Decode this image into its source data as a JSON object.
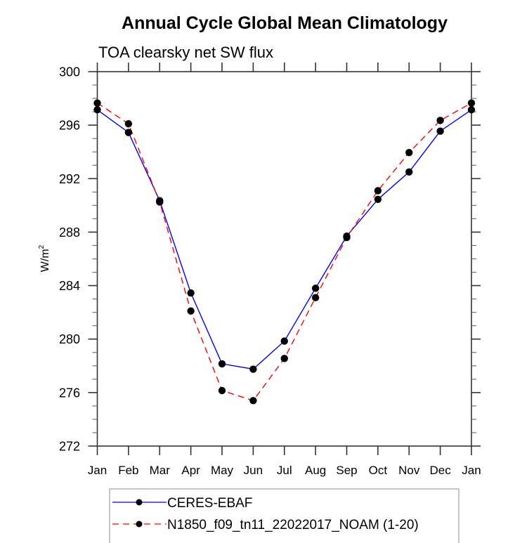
{
  "chart_data": {
    "type": "line",
    "title": "Annual Cycle Global Mean Climatology",
    "subtitle": "TOA clearsky net SW flux",
    "xlabel": "",
    "ylabel": "W/m",
    "ylabel_superscript": "2",
    "categories": [
      "Jan",
      "Feb",
      "Mar",
      "Apr",
      "May",
      "Jun",
      "Jul",
      "Aug",
      "Sep",
      "Oct",
      "Nov",
      "Dec",
      "Jan"
    ],
    "ylim": [
      272,
      300
    ],
    "yticks_major": [
      272,
      276,
      280,
      284,
      288,
      292,
      296,
      300
    ],
    "ytick_labels": [
      "272",
      "276",
      "280",
      "284",
      "288",
      "292",
      "296",
      "300"
    ],
    "yticks_minor_step": 1,
    "grid": false,
    "legend_position": "bottom-center",
    "series": [
      {
        "name": "CERES-EBAF",
        "color": "#0000ff",
        "line_style": "solid",
        "marker": "filled-circle",
        "marker_color": "#000000",
        "values": [
          297.15,
          295.45,
          290.35,
          283.45,
          278.15,
          277.75,
          279.85,
          283.8,
          287.7,
          290.45,
          292.5,
          295.55,
          297.15
        ]
      },
      {
        "name": "N1850_f09_tn11_22022017_NOAM (1-20)",
        "color": "#ff0000",
        "line_style": "dashed",
        "marker": "filled-circle",
        "marker_color": "#000000",
        "values": [
          297.65,
          296.1,
          290.25,
          282.1,
          276.15,
          275.4,
          278.55,
          283.1,
          287.6,
          291.1,
          293.95,
          296.35,
          297.65
        ]
      }
    ]
  }
}
